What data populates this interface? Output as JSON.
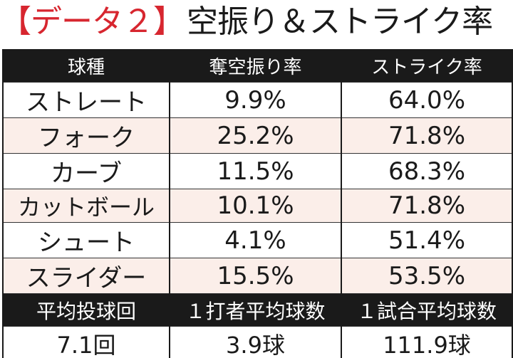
{
  "title": {
    "label": "【データ２】",
    "main": "空振り＆ストライク率"
  },
  "table": {
    "headers": [
      "球種",
      "奪空振り率",
      "ストライク率"
    ],
    "rows": [
      {
        "pitch": "ストレート",
        "whiff": "9.9%",
        "strike": "64.0%"
      },
      {
        "pitch": "フォーク",
        "whiff": "25.2%",
        "strike": "71.8%"
      },
      {
        "pitch": "カーブ",
        "whiff": "11.5%",
        "strike": "68.3%"
      },
      {
        "pitch": "カットボール",
        "whiff": "10.1%",
        "strike": "71.8%"
      },
      {
        "pitch": "シュート",
        "whiff": "4.1%",
        "strike": "51.4%"
      },
      {
        "pitch": "スライダー",
        "whiff": "15.5%",
        "strike": "53.5%"
      }
    ],
    "summary_headers": [
      "平均投球回",
      "１打者平均球数",
      "１試合平均球数"
    ],
    "summary_values": [
      "7.1回",
      "3.9球",
      "111.9球"
    ]
  },
  "colors": {
    "accent": "#d7262f",
    "header_bg": "#1a1a1a",
    "alt_row": "#fbeee9"
  }
}
